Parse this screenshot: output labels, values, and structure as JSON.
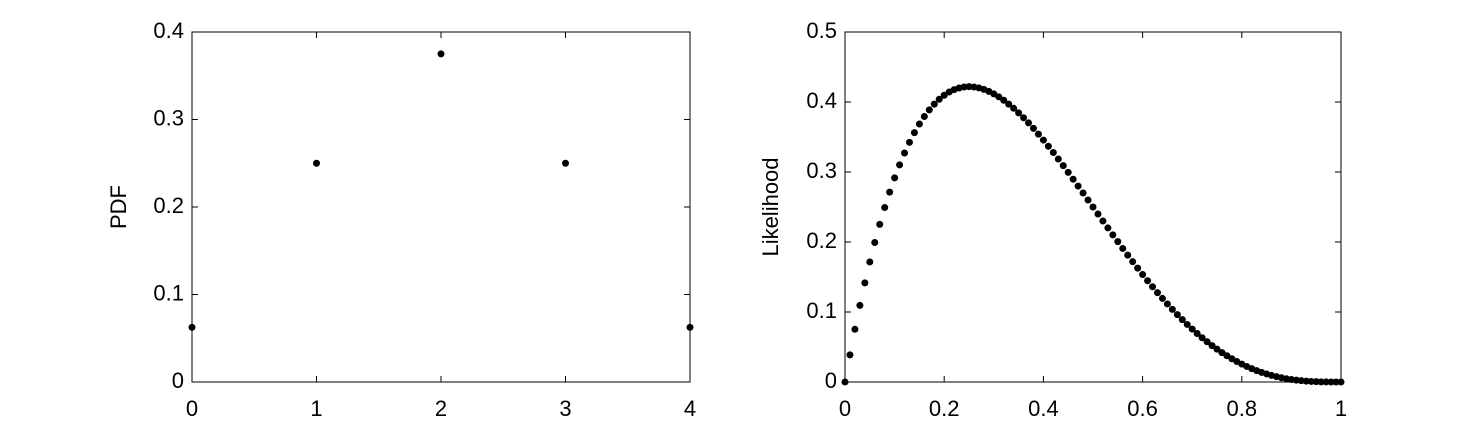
{
  "chart_data": [
    {
      "type": "scatter",
      "ylabel": "PDF",
      "color": "#000000",
      "x": [
        0,
        1,
        2,
        3,
        4
      ],
      "values": [
        0.0625,
        0.25,
        0.375,
        0.25,
        0.0625
      ],
      "xlim": [
        0,
        4
      ],
      "xticks": [
        0,
        1,
        2,
        3,
        4
      ],
      "ylim": [
        0,
        0.4
      ],
      "yticks": [
        0,
        0.1,
        0.2,
        0.3,
        0.4
      ]
    },
    {
      "type": "scatter",
      "ylabel": "Likelihood",
      "color": "#000000",
      "x": [
        0,
        0.01,
        0.02,
        0.03,
        0.04,
        0.05,
        0.06,
        0.07,
        0.08,
        0.09,
        0.1,
        0.11,
        0.12,
        0.13,
        0.14,
        0.15,
        0.16,
        0.17,
        0.18,
        0.19,
        0.2,
        0.21,
        0.22,
        0.23,
        0.24,
        0.25,
        0.26,
        0.27,
        0.28,
        0.29,
        0.3,
        0.31,
        0.32,
        0.33,
        0.34,
        0.35,
        0.36,
        0.37,
        0.38,
        0.39,
        0.4,
        0.41,
        0.42,
        0.43,
        0.44,
        0.45,
        0.46,
        0.47,
        0.48,
        0.49,
        0.5,
        0.51,
        0.52,
        0.53,
        0.54,
        0.55,
        0.56,
        0.57,
        0.58,
        0.59,
        0.6,
        0.61,
        0.62,
        0.63,
        0.64,
        0.65,
        0.66,
        0.67,
        0.68,
        0.69,
        0.7,
        0.71,
        0.72,
        0.73,
        0.74,
        0.75,
        0.76,
        0.77,
        0.78,
        0.79,
        0.8,
        0.81,
        0.82,
        0.83,
        0.84,
        0.85,
        0.86,
        0.87,
        0.88,
        0.89,
        0.9,
        0.91,
        0.92,
        0.93,
        0.94,
        0.95,
        0.96,
        0.97,
        0.98,
        0.99,
        1
      ],
      "values": [
        0,
        0.0388,
        0.0753,
        0.1095,
        0.1416,
        0.1715,
        0.1993,
        0.2252,
        0.2492,
        0.2713,
        0.2916,
        0.3102,
        0.3271,
        0.3424,
        0.3562,
        0.3685,
        0.3793,
        0.3888,
        0.397,
        0.4039,
        0.4096,
        0.4142,
        0.4176,
        0.42,
        0.4214,
        0.4219,
        0.4214,
        0.4201,
        0.418,
        0.4152,
        0.4116,
        0.4074,
        0.4025,
        0.397,
        0.391,
        0.3845,
        0.3775,
        0.3701,
        0.3623,
        0.3541,
        0.3456,
        0.3368,
        0.3278,
        0.3185,
        0.3091,
        0.2995,
        0.2897,
        0.2799,
        0.27,
        0.26,
        0.25,
        0.24,
        0.23,
        0.2201,
        0.2102,
        0.2005,
        0.1908,
        0.1813,
        0.1719,
        0.1627,
        0.1536,
        0.1447,
        0.1361,
        0.1276,
        0.1194,
        0.1115,
        0.1038,
        0.0963,
        0.0891,
        0.0822,
        0.0756,
        0.0693,
        0.0632,
        0.0575,
        0.052,
        0.0469,
        0.042,
        0.0375,
        0.0332,
        0.0293,
        0.0256,
        0.0222,
        0.0191,
        0.0163,
        0.0138,
        0.0115,
        0.0094,
        0.0076,
        0.0061,
        0.0047,
        0.0036,
        0.0027,
        0.0019,
        0.0013,
        0.0008,
        0.0005,
        0.0002,
        0.0001,
        0,
        0,
        0
      ],
      "xlim": [
        0,
        1
      ],
      "xticks": [
        0,
        0.2,
        0.4,
        0.6,
        0.8,
        1
      ],
      "ylim": [
        0,
        0.5
      ],
      "yticks": [
        0,
        0.1,
        0.2,
        0.3,
        0.4,
        0.5
      ]
    }
  ]
}
